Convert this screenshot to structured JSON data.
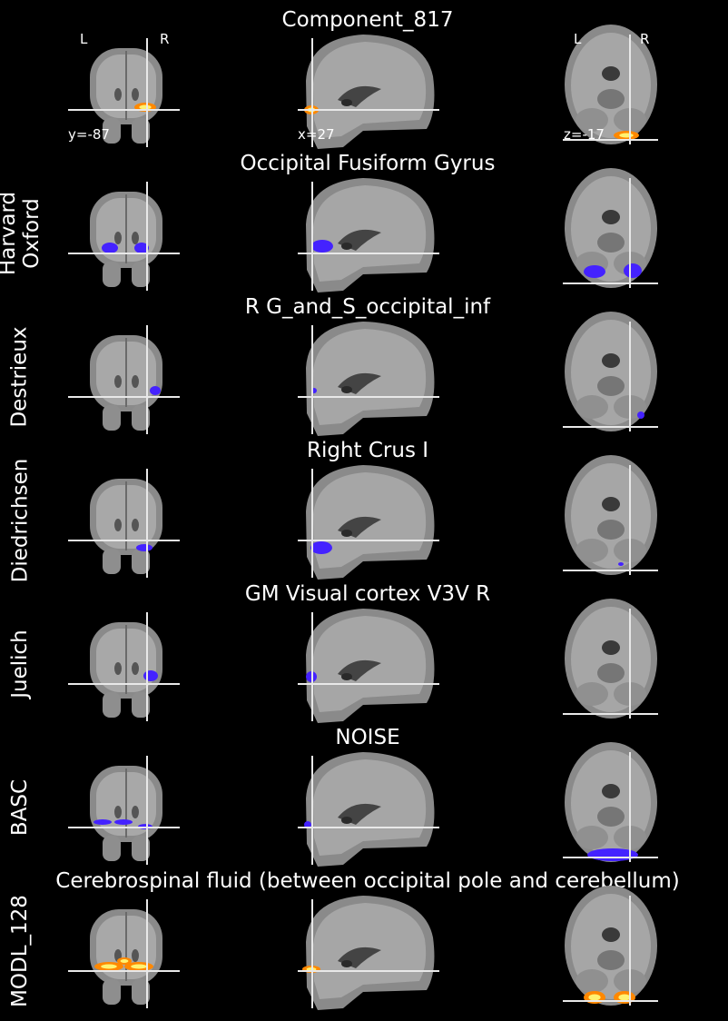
{
  "rows": [
    {
      "title": "Component_817",
      "label": "",
      "blob_color": "#ff8800",
      "blob_core": "#fff270",
      "blob_style": "hot",
      "coords": {
        "coronal": "y=-87",
        "sagittal": "x=27",
        "axial": "z=-17"
      },
      "orientation": {
        "left": "L",
        "right": "R"
      }
    },
    {
      "title": "Occipital Fusiform Gyrus",
      "label": "Harvard Oxford",
      "blob_color": "#4422ff",
      "blob_style": "flat"
    },
    {
      "title": "R G_and_S_occipital_inf",
      "label": "Destrieux",
      "blob_color": "#4422ff",
      "blob_style": "flat"
    },
    {
      "title": "Right Crus I",
      "label": "Diedrichsen",
      "blob_color": "#4422ff",
      "blob_style": "flat"
    },
    {
      "title": "GM Visual cortex V3V R",
      "label": "Juelich",
      "blob_color": "#4422ff",
      "blob_style": "flat"
    },
    {
      "title": "NOISE",
      "label": "BASC",
      "blob_color": "#4422ff",
      "blob_style": "flat"
    },
    {
      "title": "Cerebrospinal fluid (between occipital pole and cerebellum)",
      "label": "MODL_128",
      "blob_color": "#ff8800",
      "blob_core": "#fff270",
      "blob_style": "hot"
    }
  ],
  "crosshair_color": "#e8e8e8"
}
